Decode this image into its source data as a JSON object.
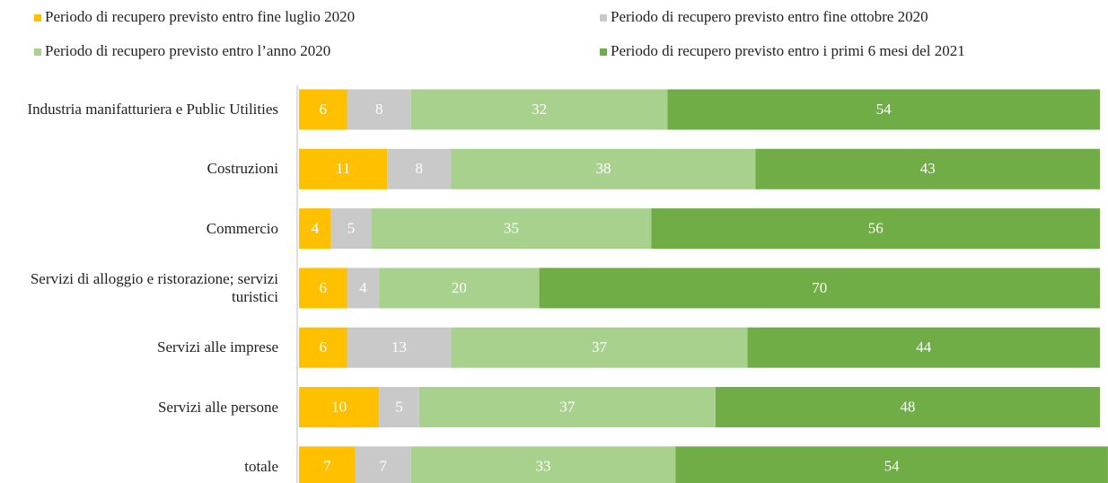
{
  "chart_data": {
    "type": "stacked-bar-horizontal",
    "categories": [
      "Industria manifatturiera e Public Utilities",
      "Costruzioni",
      "Commercio",
      "Servizi di alloggio e ristorazione; servizi turistici",
      "Servizi alle imprese",
      "Servizi alle persone",
      "totale"
    ],
    "series": [
      {
        "name": "Periodo di recupero previsto entro fine luglio 2020",
        "color": "#ffc000",
        "values": [
          6,
          11,
          4,
          6,
          6,
          10,
          7
        ]
      },
      {
        "name": "Periodo di recupero previsto entro fine ottobre 2020",
        "color": "#c9c9c9",
        "values": [
          8,
          8,
          5,
          4,
          13,
          5,
          7
        ]
      },
      {
        "name": "Periodo di recupero previsto entro l’anno 2020",
        "color": "#a9d18e",
        "values": [
          32,
          38,
          35,
          20,
          37,
          37,
          33
        ]
      },
      {
        "name": "Periodo di recupero previsto entro i primi 6 mesi del 2021",
        "color": "#70ad47",
        "values": [
          54,
          43,
          56,
          70,
          44,
          48,
          54
        ]
      }
    ],
    "xlim": [
      0,
      100
    ]
  }
}
